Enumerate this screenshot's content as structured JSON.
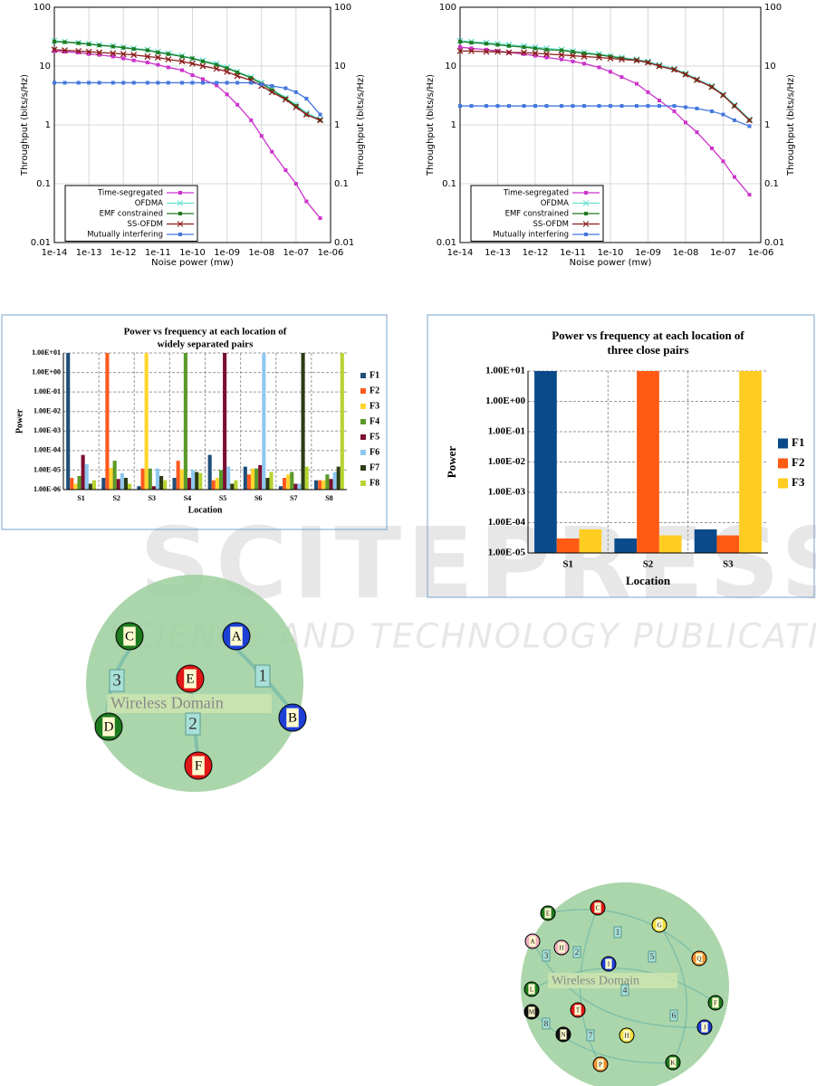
{
  "watermark": {
    "line1": "SCITEPRESS",
    "line2": "SCIENCE AND TECHNOLOGY PUBLICATIONS"
  },
  "chart_data": [
    {
      "type": "line",
      "xlabel": "Noise power (mw)",
      "ylabel": "Throughput (bits/s/Hz)",
      "xscale": "log",
      "yscale": "log",
      "grid": true,
      "legend": "lower left",
      "x": [
        1e-14,
        2e-14,
        5e-14,
        1e-13,
        2e-13,
        5e-13,
        1e-12,
        2e-12,
        5e-12,
        1e-11,
        2e-11,
        5e-11,
        1e-10,
        2e-10,
        5e-10,
        1e-09,
        2e-09,
        5e-09,
        1e-08,
        2e-08,
        5e-08,
        1e-07,
        2e-07,
        5e-07
      ],
      "xlim": [
        1e-14,
        1e-06
      ],
      "xticks": [
        {
          "value": 1e-14,
          "label": "1e-14"
        },
        {
          "value": 1e-13,
          "label": "1e-13"
        },
        {
          "value": 1e-12,
          "label": "1e-12"
        },
        {
          "value": 1e-11,
          "label": "1e-11"
        },
        {
          "value": 1e-10,
          "label": "1e-10"
        },
        {
          "value": 1e-09,
          "label": "1e-09"
        },
        {
          "value": 1e-08,
          "label": "1e-08"
        },
        {
          "value": 1e-07,
          "label": "1e-07"
        },
        {
          "value": 1e-06,
          "label": "1e-06"
        }
      ],
      "ylim": [
        0.01,
        100
      ],
      "yticks": [
        0.01,
        0.1,
        1,
        10,
        100
      ],
      "series": [
        {
          "name": "Time-segregated",
          "color": "#cc33cc",
          "marker": "square",
          "values": [
            18,
            17.5,
            17,
            16,
            15.5,
            14.5,
            13.5,
            12.5,
            11.5,
            10.5,
            9.5,
            8.5,
            7,
            6,
            4.7,
            3.3,
            2.2,
            1.2,
            0.65,
            0.35,
            0.17,
            0.1,
            0.05,
            0.026
          ]
        },
        {
          "name": "OFDMA",
          "color": "#66e0d0",
          "marker": "x",
          "values": [
            27,
            26,
            25,
            24,
            23,
            22,
            21,
            20,
            19,
            17.5,
            16.5,
            15,
            13.5,
            12.5,
            11,
            9.5,
            8,
            6.5,
            5.2,
            4,
            2.9,
            2.2,
            1.6,
            1.25
          ]
        },
        {
          "name": "EMF constrained",
          "color": "#1f7a1f",
          "marker": "square",
          "values": [
            26,
            25.5,
            24.5,
            23.5,
            22.5,
            21.5,
            20.5,
            19.5,
            18.5,
            17,
            16,
            14.5,
            13.5,
            12,
            10.5,
            9.2,
            7.8,
            6.3,
            5,
            3.9,
            2.8,
            2.1,
            1.5,
            1.2
          ]
        },
        {
          "name": "SS-OFDM",
          "color": "#8b1a1a",
          "marker": "x",
          "values": [
            19,
            18.5,
            18,
            17.5,
            17,
            16.5,
            16,
            15.5,
            14.5,
            14,
            13,
            12,
            11,
            10,
            9,
            8,
            6.8,
            5.7,
            4.6,
            3.6,
            2.7,
            2,
            1.5,
            1.2
          ]
        },
        {
          "name": "Mutually interfering",
          "color": "#4477dd",
          "marker": "square",
          "values": [
            5.2,
            5.2,
            5.2,
            5.2,
            5.2,
            5.2,
            5.2,
            5.2,
            5.2,
            5.2,
            5.2,
            5.2,
            5.2,
            5.2,
            5.2,
            5.2,
            5.2,
            5.2,
            4.9,
            4.6,
            4.2,
            3.6,
            2.8,
            1.5
          ]
        }
      ]
    },
    {
      "type": "line",
      "xlabel": "Noise power (mw)",
      "ylabel": "Throughput (bits/s/Hz)",
      "xscale": "log",
      "yscale": "log",
      "grid": true,
      "legend": "lower left",
      "x": [
        1e-14,
        2e-14,
        5e-14,
        1e-13,
        2e-13,
        5e-13,
        1e-12,
        2e-12,
        5e-12,
        1e-11,
        2e-11,
        5e-11,
        1e-10,
        2e-10,
        5e-10,
        1e-09,
        2e-09,
        5e-09,
        1e-08,
        2e-08,
        5e-08,
        1e-07,
        2e-07,
        5e-07
      ],
      "xlim": [
        1e-14,
        1e-06
      ],
      "xticks": [
        {
          "value": 1e-14,
          "label": "1e-14"
        },
        {
          "value": 1e-13,
          "label": "1e-13"
        },
        {
          "value": 1e-12,
          "label": "1e-12"
        },
        {
          "value": 1e-11,
          "label": "1e-11"
        },
        {
          "value": 1e-10,
          "label": "1e-10"
        },
        {
          "value": 1e-09,
          "label": "1e-09"
        },
        {
          "value": 1e-08,
          "label": "1e-08"
        },
        {
          "value": 1e-07,
          "label": "1e-07"
        },
        {
          "value": 1e-06,
          "label": "1e-06"
        }
      ],
      "ylim": [
        0.01,
        100
      ],
      "yticks": [
        0.01,
        0.1,
        1,
        10,
        100
      ],
      "series": [
        {
          "name": "Time-segregated",
          "color": "#cc33cc",
          "marker": "square",
          "values": [
            21,
            20,
            19,
            18,
            17,
            16,
            15,
            14,
            13,
            12,
            11,
            9.5,
            8,
            6.5,
            5,
            3.6,
            2.6,
            1.7,
            1.1,
            0.75,
            0.4,
            0.24,
            0.13,
            0.065
          ]
        },
        {
          "name": "OFDMA",
          "color": "#66e0d0",
          "marker": "x",
          "values": [
            27,
            26,
            25,
            24,
            23,
            22,
            21,
            20,
            19,
            18,
            17,
            16,
            15,
            14,
            13,
            12,
            10.5,
            9,
            7.5,
            6,
            4.6,
            3.3,
            2.2,
            1.25
          ]
        },
        {
          "name": "EMF constrained",
          "color": "#1f7a1f",
          "marker": "square",
          "values": [
            26,
            25,
            24,
            23,
            22,
            21,
            20,
            19,
            18.5,
            17.5,
            16.5,
            15.5,
            14.5,
            13.5,
            12.5,
            11.5,
            10,
            8.7,
            7.2,
            5.8,
            4.4,
            3.2,
            2.1,
            1.2
          ]
        },
        {
          "name": "SS-OFDM",
          "color": "#8b1a1a",
          "marker": "x",
          "values": [
            18,
            18,
            17.5,
            17.5,
            17,
            17,
            16.5,
            16,
            15.5,
            15,
            14.5,
            14,
            13.5,
            13,
            12.5,
            11.5,
            10,
            8.7,
            7.2,
            5.8,
            4.4,
            3.2,
            2.1,
            1.2
          ]
        },
        {
          "name": "Mutually interfering",
          "color": "#4477dd",
          "marker": "square",
          "values": [
            2.1,
            2.1,
            2.1,
            2.1,
            2.1,
            2.1,
            2.1,
            2.1,
            2.1,
            2.1,
            2.1,
            2.1,
            2.1,
            2.1,
            2.1,
            2.1,
            2.1,
            2.1,
            2.0,
            1.9,
            1.7,
            1.5,
            1.2,
            0.95
          ]
        }
      ]
    },
    {
      "type": "bar",
      "title": [
        "Power vs frequency at each location of",
        "widely separated pairs"
      ],
      "xlabel": "Location",
      "ylabel": "Power",
      "yscale": "log",
      "grid": true,
      "legend": "right",
      "categories": [
        "S1",
        "S2",
        "S3",
        "S4",
        "S5",
        "S6",
        "S7",
        "S8"
      ],
      "ylim": [
        1e-06,
        10
      ],
      "yticks": [
        {
          "value": 1e-06,
          "label": "1.00E-06"
        },
        {
          "value": 1e-05,
          "label": "1.00E-05"
        },
        {
          "value": 0.0001,
          "label": "1.00E-04"
        },
        {
          "value": 0.001,
          "label": "1.00E-03"
        },
        {
          "value": 0.01,
          "label": "1.00E-02"
        },
        {
          "value": 0.1,
          "label": "1.00E-01"
        },
        {
          "value": 1,
          "label": "1.00E+00"
        },
        {
          "value": 10,
          "label": "1.00E+01"
        }
      ],
      "series": [
        {
          "name": "F1",
          "color": "#1f4e79",
          "values": [
            10,
            4e-06,
            1.5e-06,
            4e-06,
            6e-05,
            1.5e-05,
            1.5e-06,
            3e-06
          ]
        },
        {
          "name": "F2",
          "color": "#ff5a1f",
          "values": [
            4e-06,
            10,
            1.2e-05,
            3e-05,
            3e-06,
            6e-06,
            4e-06,
            3e-06
          ]
        },
        {
          "name": "F3",
          "color": "#ffd52e",
          "values": [
            2e-06,
            1.3e-05,
            10,
            1.1e-05,
            4e-06,
            1.2e-05,
            6e-06,
            3e-06
          ]
        },
        {
          "name": "F4",
          "color": "#5a9a2a",
          "values": [
            5e-06,
            3e-05,
            1.2e-05,
            10,
            1e-05,
            1.2e-05,
            8e-06,
            6e-06
          ]
        },
        {
          "name": "F5",
          "color": "#7a1030",
          "values": [
            6e-05,
            3.5e-06,
            1.5e-06,
            4e-06,
            10,
            1.8e-05,
            2e-06,
            3.5e-06
          ]
        },
        {
          "name": "F6",
          "color": "#8ec8f0",
          "values": [
            2e-05,
            7e-06,
            1.2e-05,
            1e-05,
            1.5e-05,
            10,
            2e-06,
            8e-06
          ]
        },
        {
          "name": "F7",
          "color": "#2c3d14",
          "values": [
            2e-06,
            4e-06,
            5e-06,
            8e-06,
            2e-06,
            4e-06,
            10,
            1.5e-05
          ]
        },
        {
          "name": "F8",
          "color": "#b6d432",
          "values": [
            3e-06,
            2e-06,
            3e-06,
            7e-06,
            3e-06,
            8e-06,
            1.5e-05,
            10
          ]
        }
      ]
    },
    {
      "type": "bar",
      "title": [
        "Power vs frequency at each location of",
        "three close pairs"
      ],
      "xlabel": "Location",
      "ylabel": "Power",
      "yscale": "log",
      "grid": true,
      "legend": "right",
      "categories": [
        "S1",
        "S2",
        "S3"
      ],
      "ylim": [
        1e-05,
        10
      ],
      "yticks": [
        {
          "value": 1e-05,
          "label": "1.00E-05"
        },
        {
          "value": 0.0001,
          "label": "1.00E-04"
        },
        {
          "value": 0.001,
          "label": "1.00E-03"
        },
        {
          "value": 0.01,
          "label": "1.00E-02"
        },
        {
          "value": 0.1,
          "label": "1.00E-01"
        },
        {
          "value": 1,
          "label": "1.00E+00"
        },
        {
          "value": 10,
          "label": "1.00E+01"
        }
      ],
      "series": [
        {
          "name": "F1",
          "color": "#0a4a8a",
          "values": [
            10,
            3e-05,
            6e-05
          ]
        },
        {
          "name": "F2",
          "color": "#ff5a14",
          "values": [
            3e-05,
            10,
            3.8e-05
          ]
        },
        {
          "name": "F3",
          "color": "#ffcc22",
          "values": [
            6e-05,
            3.8e-05,
            10
          ]
        }
      ]
    }
  ],
  "diagrams": [
    {
      "label": "Wireless Domain",
      "links": [
        "3",
        "1",
        "2"
      ],
      "nodes": [
        {
          "label": "C",
          "color": "#1e7a1e"
        },
        {
          "label": "A",
          "color": "#1e3fd6"
        },
        {
          "label": "E",
          "color": "#e01818"
        },
        {
          "label": "D",
          "color": "#1e7a1e"
        },
        {
          "label": "B",
          "color": "#1e3fd6"
        },
        {
          "label": "F",
          "color": "#e01818"
        }
      ]
    },
    {
      "label": "Wireless Domain",
      "links": [
        "1",
        "2",
        "3",
        "4",
        "5",
        "6",
        "7",
        "8"
      ],
      "nodes": [
        {
          "label": "E",
          "color": "#1e7a1e"
        },
        {
          "label": "C",
          "color": "#e01818"
        },
        {
          "label": "G",
          "color": "#f0e040"
        },
        {
          "label": "A",
          "color": "#f0b0c0"
        },
        {
          "label": "H",
          "color": "#f0b0c0"
        },
        {
          "label": "I",
          "color": "#1e3fd6"
        },
        {
          "label": "Q",
          "color": "#f09030"
        },
        {
          "label": "L",
          "color": "#1e7a1e"
        },
        {
          "label": "F",
          "color": "#1e7a1e"
        },
        {
          "label": "T",
          "color": "#e01818"
        },
        {
          "label": "M",
          "color": "#111111"
        },
        {
          "label": "N",
          "color": "#111111"
        },
        {
          "label": "H",
          "color": "#f0e040"
        },
        {
          "label": "J",
          "color": "#1e3fd6"
        },
        {
          "label": "P",
          "color": "#f09030"
        },
        {
          "label": "K",
          "color": "#1e7a1e"
        }
      ]
    }
  ]
}
